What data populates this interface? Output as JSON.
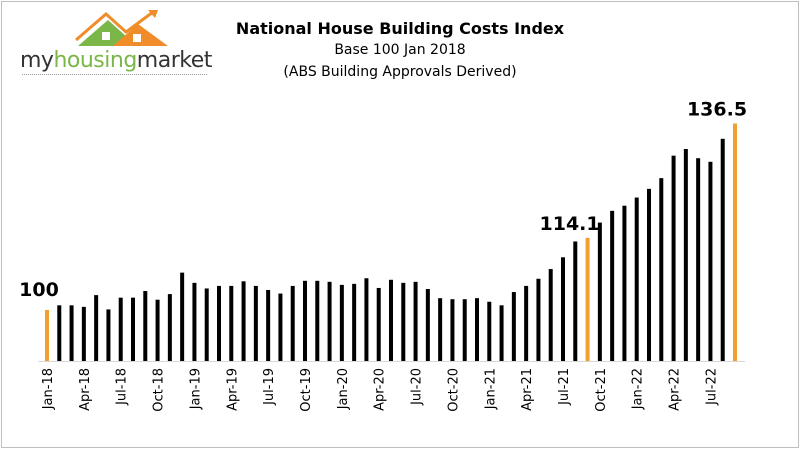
{
  "logo": {
    "part1": "my",
    "part2": "housing",
    "part3": "market"
  },
  "chart_data": {
    "type": "bar",
    "title": "National House Building Costs Index",
    "subtitle": "Base 100 Jan 2018",
    "subtitle2": "(ABS Building Approvals Derived)",
    "xlabel": "",
    "ylabel": "",
    "ylim": [
      90,
      140
    ],
    "grid": false,
    "start_month": "Jan-18",
    "tick_labels": [
      "Jan-18",
      "Apr-18",
      "Jul-18",
      "Oct-18",
      "Jan-19",
      "Apr-19",
      "Jul-19",
      "Oct-19",
      "Jan-20",
      "Apr-20",
      "Jul-20",
      "Oct-20",
      "Jan-21",
      "Apr-21",
      "Jul-21",
      "Oct-21",
      "Jan-22",
      "Apr-22",
      "Jul-22"
    ],
    "values": [
      100,
      100.9,
      100.9,
      100.6,
      102.9,
      100.1,
      102.4,
      102.4,
      103.7,
      102.0,
      103.1,
      107.3,
      105.3,
      104.2,
      104.7,
      104.7,
      105.6,
      104.7,
      103.9,
      103.2,
      104.7,
      105.7,
      105.7,
      105.5,
      104.9,
      105.1,
      106.2,
      104.3,
      105.9,
      105.3,
      105.5,
      104.1,
      102.3,
      102.1,
      102.1,
      102.3,
      101.6,
      100.9,
      103.5,
      104.7,
      106.1,
      108.0,
      110.3,
      113.4,
      114.1,
      117.1,
      119.4,
      120.4,
      122.0,
      123.7,
      125.8,
      130.2,
      131.5,
      129.7,
      129.0,
      133.5,
      136.5
    ],
    "highlighted": [
      {
        "index": 0,
        "label": "100"
      },
      {
        "index": 44,
        "label": "114.1"
      },
      {
        "index": 56,
        "label": "136.5"
      }
    ],
    "colors": {
      "bar": "#000000",
      "highlight": "#f0a030"
    }
  }
}
